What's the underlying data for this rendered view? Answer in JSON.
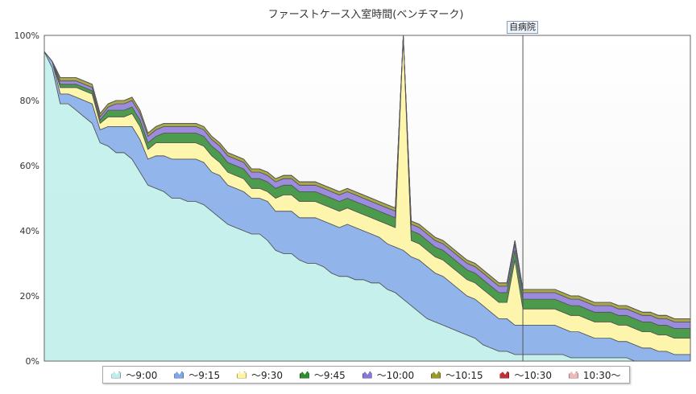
{
  "chart_data": {
    "type": "area",
    "stacked": true,
    "title": "ファーストケース入室時間(ベンチマーク)",
    "ylabel": "",
    "ylim": [
      0,
      100
    ],
    "y_ticks": [
      "0%",
      "20%",
      "40%",
      "60%",
      "80%",
      "100%"
    ],
    "grid": false,
    "legend_position": "bottom",
    "highlight": {
      "label": "自病院",
      "index": 60
    },
    "series": [
      {
        "name": "～9:00",
        "color": "#bdefe9",
        "values": [
          95,
          90,
          79,
          79,
          77,
          75,
          73,
          67,
          66,
          64,
          64,
          62,
          58,
          54,
          53,
          52,
          50,
          50,
          49,
          49,
          48,
          46,
          44,
          42,
          41,
          40,
          39,
          39,
          37,
          34,
          33,
          33,
          31,
          30,
          30,
          29,
          27,
          26,
          26,
          25,
          25,
          24,
          24,
          22,
          21,
          19,
          17,
          15,
          13,
          12,
          11,
          10,
          9,
          8,
          7,
          5,
          4,
          3,
          3,
          2,
          2,
          2,
          2,
          2,
          2,
          2,
          1,
          1,
          1,
          1,
          1,
          1,
          1,
          1,
          0,
          0,
          0,
          0,
          0,
          0,
          0,
          0
        ]
      },
      {
        "name": "～9:15",
        "color": "#7fa8e8",
        "values": [
          0,
          2,
          3,
          3,
          4,
          5,
          6,
          4,
          6,
          8,
          8,
          10,
          10,
          8,
          10,
          11,
          12,
          12,
          13,
          13,
          13,
          12,
          13,
          12,
          12,
          12,
          11,
          11,
          12,
          12,
          13,
          13,
          13,
          14,
          14,
          14,
          15,
          15,
          16,
          16,
          15,
          15,
          14,
          14,
          14,
          15,
          15,
          16,
          16,
          15,
          15,
          14,
          13,
          12,
          12,
          12,
          11,
          10,
          10,
          9,
          9,
          9,
          9,
          9,
          9,
          8,
          8,
          8,
          7,
          6,
          6,
          6,
          5,
          5,
          5,
          4,
          4,
          3,
          3,
          2,
          2,
          2
        ]
      },
      {
        "name": "～9:30",
        "color": "#fff4a0",
        "values": [
          0,
          0,
          2,
          2,
          3,
          3,
          3,
          2,
          3,
          3,
          3,
          4,
          4,
          3,
          4,
          4,
          5,
          5,
          5,
          5,
          5,
          5,
          4,
          4,
          4,
          4,
          3,
          3,
          3,
          4,
          5,
          5,
          5,
          5,
          5,
          5,
          5,
          5,
          5,
          5,
          5,
          5,
          5,
          6,
          6,
          70,
          5,
          5,
          5,
          5,
          5,
          5,
          5,
          5,
          5,
          5,
          5,
          5,
          5,
          20,
          5,
          5,
          5,
          5,
          5,
          5,
          5,
          5,
          5,
          5,
          5,
          5,
          5,
          5,
          5,
          5,
          5,
          5,
          5,
          5,
          5,
          5
        ]
      },
      {
        "name": "～9:45",
        "color": "#2e8b2e",
        "values": [
          0,
          0,
          1,
          1,
          1,
          1,
          1,
          1,
          2,
          2,
          2,
          2,
          2,
          2,
          2,
          3,
          3,
          3,
          3,
          3,
          3,
          3,
          3,
          3,
          3,
          3,
          3,
          3,
          3,
          3,
          3,
          3,
          3,
          3,
          3,
          3,
          3,
          3,
          3,
          3,
          3,
          3,
          3,
          3,
          3,
          3,
          3,
          3,
          3,
          3,
          3,
          3,
          3,
          3,
          3,
          3,
          3,
          3,
          3,
          3,
          3,
          3,
          3,
          3,
          3,
          3,
          3,
          3,
          3,
          3,
          3,
          3,
          3,
          3,
          3,
          3,
          3,
          3,
          3,
          3,
          3,
          3
        ]
      },
      {
        "name": "～10:00",
        "color": "#8a78d8",
        "values": [
          0,
          0,
          1,
          1,
          1,
          1,
          1,
          1,
          1,
          2,
          2,
          2,
          2,
          2,
          2,
          2,
          2,
          2,
          2,
          2,
          2,
          2,
          2,
          2,
          2,
          2,
          2,
          2,
          2,
          2,
          2,
          2,
          2,
          2,
          2,
          2,
          2,
          2,
          2,
          2,
          2,
          2,
          2,
          2,
          2,
          2,
          2,
          2,
          2,
          2,
          2,
          2,
          2,
          2,
          2,
          2,
          2,
          2,
          2,
          2,
          2,
          2,
          2,
          2,
          2,
          2,
          2,
          2,
          2,
          2,
          2,
          2,
          2,
          2,
          2,
          2,
          2,
          2,
          2,
          2,
          2,
          2
        ]
      },
      {
        "name": "～10:15",
        "color": "#9a9a2a",
        "values": [
          0,
          0,
          1,
          1,
          1,
          1,
          1,
          1,
          1,
          1,
          1,
          1,
          1,
          1,
          1,
          1,
          1,
          1,
          1,
          1,
          1,
          1,
          1,
          1,
          1,
          1,
          1,
          1,
          1,
          1,
          1,
          1,
          1,
          1,
          1,
          1,
          1,
          1,
          1,
          1,
          1,
          1,
          1,
          1,
          1,
          1,
          1,
          1,
          1,
          1,
          1,
          1,
          1,
          1,
          1,
          1,
          1,
          1,
          1,
          1,
          1,
          1,
          1,
          1,
          1,
          1,
          1,
          1,
          1,
          1,
          1,
          1,
          1,
          1,
          1,
          1,
          1,
          1,
          1,
          1,
          1,
          1
        ]
      },
      {
        "name": "～10:30",
        "color": "#c03030",
        "values": [
          0,
          0,
          0,
          0,
          0,
          0,
          0,
          0,
          0,
          0,
          0,
          0,
          0,
          0,
          0,
          0,
          0,
          0,
          0,
          0,
          0,
          0,
          0,
          0,
          0,
          0,
          0,
          0,
          0,
          0,
          0,
          0,
          0,
          0,
          0,
          0,
          0,
          0,
          0,
          0,
          0,
          0,
          0,
          0,
          0,
          0,
          0,
          0,
          0,
          0,
          0,
          0,
          0,
          0,
          0,
          0,
          0,
          0,
          0,
          0,
          0,
          0,
          0,
          0,
          0,
          0,
          0,
          0,
          0,
          0,
          0,
          0,
          0,
          0,
          0,
          0,
          0,
          0,
          0,
          0,
          0,
          0
        ]
      },
      {
        "name": "10:30～",
        "color": "#f0b8b8",
        "values": [
          0,
          0,
          0,
          0,
          0,
          0,
          0,
          0,
          0,
          0,
          0,
          0,
          0,
          0,
          0,
          0,
          0,
          0,
          0,
          0,
          0,
          0,
          0,
          0,
          0,
          0,
          0,
          0,
          0,
          0,
          0,
          0,
          0,
          0,
          0,
          0,
          0,
          0,
          0,
          0,
          0,
          0,
          0,
          0,
          0,
          0,
          0,
          0,
          0,
          0,
          0,
          0,
          0,
          0,
          0,
          0,
          0,
          0,
          0,
          0,
          0,
          0,
          0,
          0,
          0,
          0,
          0,
          0,
          0,
          0,
          0,
          0,
          0,
          0,
          0,
          0,
          0,
          0,
          0,
          0,
          0,
          0
        ]
      }
    ]
  }
}
